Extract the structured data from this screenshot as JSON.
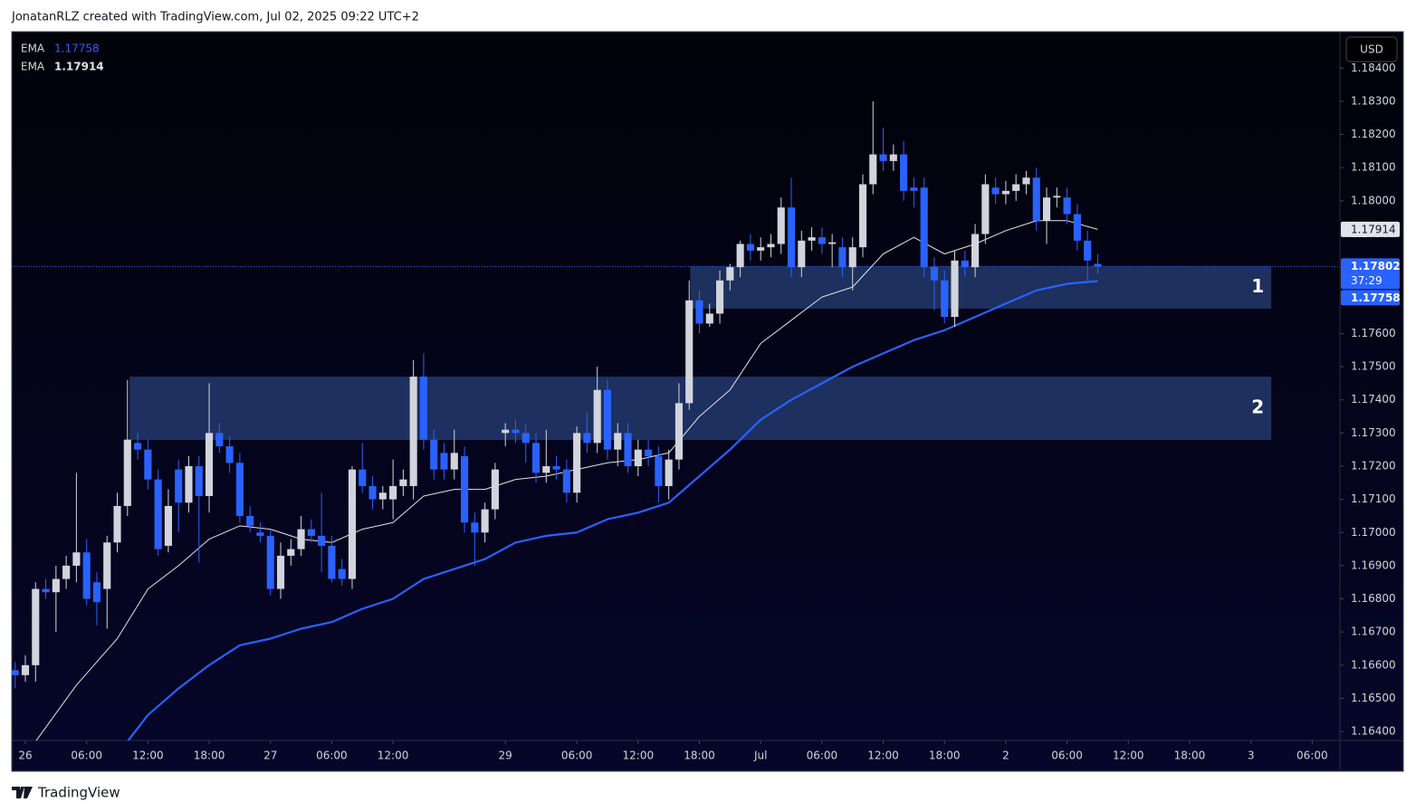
{
  "header": "JonatanRLZ created with TradingView.com, Jul 02, 2025 09:22 UTC+2",
  "footer": "TradingView",
  "chart_data": {
    "type": "candlestick",
    "currency": "USD",
    "up_color": "#d1d4dc",
    "down_color": "#2962ff",
    "open": [
      1.16585,
      1.1657,
      1.166,
      1.1683,
      1.1682,
      1.1686,
      1.169,
      1.1694,
      1.1685,
      1.1683,
      1.1697,
      1.1708,
      1.1727,
      1.1725,
      1.1716,
      1.1696,
      1.1719,
      1.1709,
      1.172,
      1.1711,
      1.173,
      1.1726,
      1.1721,
      1.1705,
      1.17,
      1.1699,
      1.1683,
      1.1693,
      1.1695,
      1.1701,
      1.1699,
      1.1696,
      1.1689,
      1.1686,
      1.1719,
      1.1714,
      1.171,
      1.171,
      1.1714,
      1.1714,
      1.1747,
      1.1728,
      1.1724,
      1.1719,
      1.1723,
      1.1703,
      1.17,
      1.1707,
      1.173,
      1.1731,
      1.173,
      1.1727,
      1.1718,
      1.172,
      1.1719,
      1.1712,
      1.173,
      1.1727,
      1.1743,
      1.1725,
      1.173,
      1.172,
      1.1725,
      1.1723,
      1.1714,
      1.1722,
      1.1739,
      1.177,
      1.1763,
      1.1766,
      1.1776,
      1.178,
      1.1787,
      1.1785,
      1.1786,
      1.1787,
      1.1798,
      1.178,
      1.1788,
      1.1789,
      1.1787,
      1.1786,
      1.178,
      1.1786,
      1.1805,
      1.1814,
      1.1812,
      1.1814,
      1.1804,
      1.1804,
      1.178,
      1.1776,
      1.1765,
      1.1782,
      1.178,
      1.179,
      1.1804,
      1.1802,
      1.1803,
      1.1805,
      1.1807,
      1.1794,
      1.1801,
      1.1801,
      1.1796,
      1.1788,
      1.1781
    ],
    "high": [
      1.1661,
      1.1663,
      1.1685,
      1.1686,
      1.169,
      1.1693,
      1.1718,
      1.1698,
      1.1688,
      1.1699,
      1.1712,
      1.1746,
      1.173,
      1.1728,
      1.1719,
      1.1713,
      1.1722,
      1.1723,
      1.1723,
      1.1745,
      1.1733,
      1.1729,
      1.1724,
      1.1708,
      1.1703,
      1.1701,
      1.1697,
      1.1698,
      1.1705,
      1.1704,
      1.1712,
      1.1699,
      1.1692,
      1.172,
      1.1727,
      1.1717,
      1.1714,
      1.1722,
      1.1719,
      1.1752,
      1.1754,
      1.1731,
      1.1727,
      1.1731,
      1.1726,
      1.1706,
      1.1709,
      1.1721,
      1.1733,
      1.1734,
      1.1733,
      1.173,
      1.1731,
      1.1723,
      1.1722,
      1.1732,
      1.1736,
      1.175,
      1.1746,
      1.1733,
      1.1733,
      1.1728,
      1.1728,
      1.1726,
      1.1725,
      1.1745,
      1.1776,
      1.1773,
      1.1769,
      1.1779,
      1.1781,
      1.1788,
      1.179,
      1.1789,
      1.179,
      1.1801,
      1.1807,
      1.1791,
      1.1792,
      1.1792,
      1.179,
      1.1789,
      1.1789,
      1.1808,
      1.183,
      1.1822,
      1.1817,
      1.1818,
      1.1807,
      1.1807,
      1.1783,
      1.1779,
      1.1785,
      1.1785,
      1.1793,
      1.1808,
      1.1807,
      1.1806,
      1.1808,
      1.1809,
      1.181,
      1.1804,
      1.1804,
      1.1804,
      1.1799,
      1.1791,
      1.1784
    ],
    "low": [
      1.1653,
      1.1655,
      1.1655,
      1.168,
      1.167,
      1.1683,
      1.1685,
      1.1678,
      1.1672,
      1.1671,
      1.1694,
      1.1705,
      1.1722,
      1.1713,
      1.1693,
      1.1694,
      1.17,
      1.1706,
      1.1691,
      1.1706,
      1.1724,
      1.1718,
      1.1703,
      1.17,
      1.1697,
      1.1681,
      1.168,
      1.169,
      1.1693,
      1.1697,
      1.1688,
      1.1685,
      1.1684,
      1.1683,
      1.1712,
      1.1707,
      1.1707,
      1.1704,
      1.1711,
      1.171,
      1.1725,
      1.1716,
      1.1716,
      1.1716,
      1.17,
      1.169,
      1.1697,
      1.1704,
      1.1726,
      1.1727,
      1.1721,
      1.1715,
      1.1715,
      1.1716,
      1.1709,
      1.1709,
      1.1724,
      1.1724,
      1.1722,
      1.172,
      1.1718,
      1.1717,
      1.172,
      1.1709,
      1.171,
      1.1719,
      1.1737,
      1.176,
      1.1762,
      1.1763,
      1.1773,
      1.1777,
      1.1782,
      1.1782,
      1.1783,
      1.1784,
      1.1777,
      1.1777,
      1.1785,
      1.1784,
      1.178,
      1.1777,
      1.1773,
      1.1783,
      1.1802,
      1.1809,
      1.1809,
      1.18,
      1.1798,
      1.1777,
      1.1767,
      1.1763,
      1.1762,
      1.1777,
      1.1777,
      1.1787,
      1.1799,
      1.1799,
      1.18,
      1.1802,
      1.1791,
      1.1787,
      1.1798,
      1.1793,
      1.1785,
      1.1776,
      1.1778
    ],
    "close": [
      1.1657,
      1.166,
      1.1683,
      1.1682,
      1.1686,
      1.169,
      1.1694,
      1.168,
      1.1679,
      1.1697,
      1.1708,
      1.1728,
      1.1725,
      1.1716,
      1.1695,
      1.1708,
      1.1709,
      1.172,
      1.1711,
      1.173,
      1.1726,
      1.1721,
      1.1705,
      1.1702,
      1.1699,
      1.1683,
      1.1693,
      1.1695,
      1.1701,
      1.1699,
      1.1696,
      1.1686,
      1.1686,
      1.1719,
      1.1714,
      1.171,
      1.1712,
      1.1714,
      1.1716,
      1.1747,
      1.1728,
      1.1719,
      1.1719,
      1.1724,
      1.1703,
      1.17,
      1.1707,
      1.1719,
      1.1731,
      1.173,
      1.1727,
      1.1718,
      1.172,
      1.1719,
      1.1712,
      1.173,
      1.1727,
      1.1743,
      1.1725,
      1.173,
      1.172,
      1.1725,
      1.1723,
      1.1714,
      1.1722,
      1.1739,
      1.177,
      1.1763,
      1.1766,
      1.1776,
      1.178,
      1.1787,
      1.1785,
      1.1786,
      1.1787,
      1.1798,
      1.178,
      1.1788,
      1.1789,
      1.1787,
      1.17875,
      1.178,
      1.1786,
      1.1805,
      1.1814,
      1.1812,
      1.1814,
      1.1803,
      1.1803,
      1.178,
      1.1776,
      1.1765,
      1.1782,
      1.178,
      1.179,
      1.1805,
      1.1802,
      1.1803,
      1.1805,
      1.1807,
      1.1794,
      1.1801,
      1.18015,
      1.1796,
      1.1788,
      1.1782,
      1.17802
    ],
    "series": [
      {
        "name": "EMA",
        "color": "#2962ff",
        "width": 2.2,
        "last_label": "1.17758",
        "x": [
          11,
          13,
          16,
          19,
          22,
          25,
          28,
          31,
          34,
          37,
          40,
          43,
          46,
          49,
          52,
          55,
          58,
          61,
          64,
          67,
          70,
          73,
          76,
          79,
          82,
          85,
          88,
          91,
          94,
          97,
          100,
          103,
          106
        ],
        "values": [
          1.1637,
          1.1645,
          1.1653,
          1.166,
          1.1666,
          1.1668,
          1.1671,
          1.1673,
          1.1677,
          1.168,
          1.1686,
          1.1689,
          1.1692,
          1.1697,
          1.1699,
          1.17,
          1.1704,
          1.1706,
          1.1709,
          1.1717,
          1.1725,
          1.1734,
          1.174,
          1.1745,
          1.175,
          1.1754,
          1.1758,
          1.1761,
          1.1765,
          1.1769,
          1.1773,
          1.1775,
          1.17758
        ]
      },
      {
        "name": "EMA",
        "color": "#e0e3eb",
        "width": 1,
        "last_label": "1.17914",
        "x": [
          2,
          6,
          10,
          13,
          16,
          19,
          22,
          25,
          28,
          31,
          34,
          37,
          40,
          43,
          46,
          49,
          52,
          55,
          58,
          61,
          64,
          67,
          70,
          73,
          76,
          79,
          82,
          85,
          88,
          91,
          94,
          97,
          100,
          103,
          106
        ],
        "values": [
          1.1637,
          1.1654,
          1.1668,
          1.1683,
          1.169,
          1.1698,
          1.1702,
          1.1701,
          1.1698,
          1.1697,
          1.1701,
          1.1703,
          1.1711,
          1.1713,
          1.1713,
          1.1716,
          1.1717,
          1.1719,
          1.1721,
          1.1722,
          1.1724,
          1.1735,
          1.1743,
          1.1757,
          1.1764,
          1.1771,
          1.1774,
          1.1784,
          1.1789,
          1.1784,
          1.1787,
          1.1791,
          1.1794,
          1.1794,
          1.17914
        ]
      }
    ],
    "last_price": {
      "value": 1.17802,
      "label": "1.17802",
      "countdown": "37:29"
    },
    "zones": [
      {
        "label": "1",
        "x": [
          66.1,
          123
        ],
        "y": [
          1.17675,
          1.17803
        ]
      },
      {
        "label": "2",
        "x": [
          11.2,
          123
        ],
        "y": [
          1.17279,
          1.1747
        ]
      }
    ],
    "xlim": [
      -0.33,
      129.72
    ],
    "ylim": [
      1.16373,
      1.1851
    ],
    "xticks": [
      {
        "value": 1,
        "label": "26"
      },
      {
        "value": 7,
        "label": "06:00"
      },
      {
        "value": 13,
        "label": "12:00"
      },
      {
        "value": 19,
        "label": "18:00"
      },
      {
        "value": 25,
        "label": "27"
      },
      {
        "value": 31,
        "label": "06:00"
      },
      {
        "value": 37,
        "label": "12:00"
      },
      {
        "value": 48,
        "label": "29"
      },
      {
        "value": 55,
        "label": "06:00"
      },
      {
        "value": 61,
        "label": "12:00"
      },
      {
        "value": 67,
        "label": "18:00"
      },
      {
        "value": 73,
        "label": "Jul"
      },
      {
        "value": 79,
        "label": "06:00"
      },
      {
        "value": 85,
        "label": "12:00"
      },
      {
        "value": 91,
        "label": "18:00"
      },
      {
        "value": 97,
        "label": "2"
      },
      {
        "value": 103,
        "label": "06:00"
      },
      {
        "value": 109,
        "label": "12:00"
      },
      {
        "value": 115,
        "label": "18:00"
      },
      {
        "value": 121,
        "label": "3"
      },
      {
        "value": 127,
        "label": "06:00"
      }
    ],
    "yticks": [
      {
        "value": 1.164,
        "label": "1.16400"
      },
      {
        "value": 1.165,
        "label": "1.16500"
      },
      {
        "value": 1.166,
        "label": "1.16600"
      },
      {
        "value": 1.167,
        "label": "1.16700"
      },
      {
        "value": 1.168,
        "label": "1.16800"
      },
      {
        "value": 1.169,
        "label": "1.16900"
      },
      {
        "value": 1.17,
        "label": "1.17000"
      },
      {
        "value": 1.171,
        "label": "1.17100"
      },
      {
        "value": 1.172,
        "label": "1.17200"
      },
      {
        "value": 1.173,
        "label": "1.17300"
      },
      {
        "value": 1.174,
        "label": "1.17400"
      },
      {
        "value": 1.175,
        "label": "1.17500"
      },
      {
        "value": 1.176,
        "label": "1.17600"
      },
      {
        "value": 1.177,
        "label": "1.17700"
      },
      {
        "value": 1.178,
        "label": "1.17800"
      },
      {
        "value": 1.179,
        "label": "1.17900"
      },
      {
        "value": 1.18,
        "label": "1.18000"
      },
      {
        "value": 1.181,
        "label": "1.18100"
      },
      {
        "value": 1.182,
        "label": "1.18200"
      },
      {
        "value": 1.183,
        "label": "1.18300"
      },
      {
        "value": 1.184,
        "label": "1.18400"
      }
    ]
  }
}
